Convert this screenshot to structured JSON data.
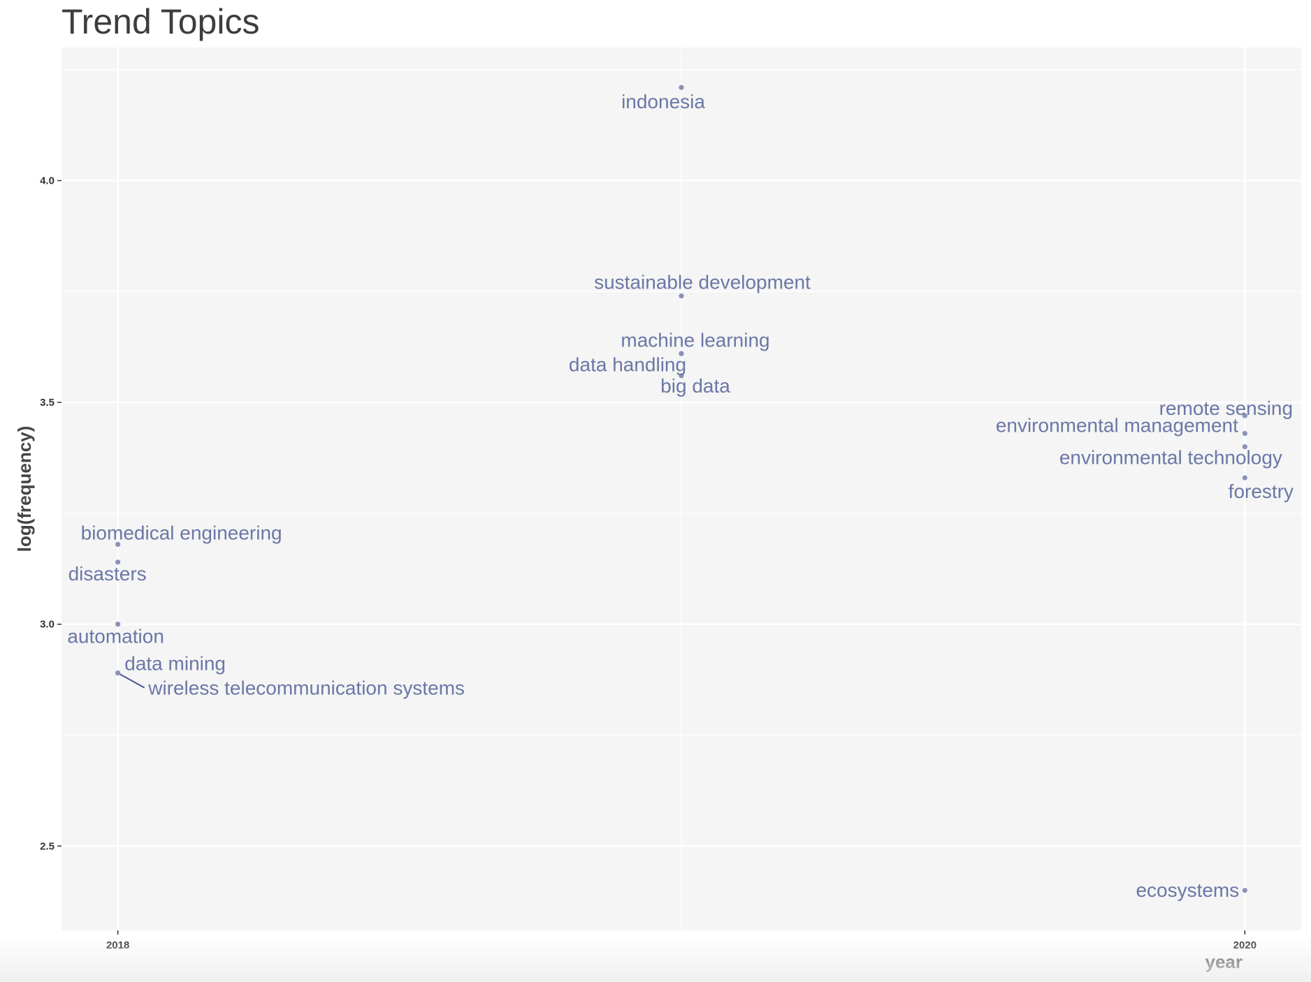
{
  "chart_data": {
    "type": "scatter",
    "title": "Trend Topics",
    "xlabel": "year",
    "ylabel": "log(frequency)",
    "xlim": [
      2017.9,
      2020.1
    ],
    "ylim": [
      2.31,
      4.3
    ],
    "x_ticks": [
      2018,
      2020
    ],
    "x_tick_labels": [
      "2018",
      "2020"
    ],
    "y_ticks": [
      2.5,
      3.0,
      3.5,
      4.0
    ],
    "y_tick_labels": [
      "2.5",
      "3.0",
      "3.5",
      "4.0"
    ],
    "grid": true,
    "legend": "none",
    "colors": {
      "panel_background": "#f5f5f5",
      "grid": "#ffffff",
      "point": "#8a92b8",
      "label": "#6b77a6"
    },
    "points": [
      {
        "label": "indonesia",
        "x": 2019,
        "y": 4.21
      },
      {
        "label": "sustainable development",
        "x": 2019,
        "y": 3.74
      },
      {
        "label": "machine learning",
        "x": 2019,
        "y": 3.61
      },
      {
        "label": "data handling",
        "x": 2019,
        "y": 3.61
      },
      {
        "label": "big data",
        "x": 2019,
        "y": 3.56
      },
      {
        "label": "remote sensing",
        "x": 2020,
        "y": 3.47
      },
      {
        "label": "environmental management",
        "x": 2020,
        "y": 3.43
      },
      {
        "label": "environmental technology",
        "x": 2020,
        "y": 3.4
      },
      {
        "label": "forestry",
        "x": 2020,
        "y": 3.33
      },
      {
        "label": "ecosystems",
        "x": 2020,
        "y": 2.4
      },
      {
        "label": "biomedical engineering",
        "x": 2018,
        "y": 3.18
      },
      {
        "label": "disasters",
        "x": 2018,
        "y": 3.14
      },
      {
        "label": "automation",
        "x": 2018,
        "y": 3.0
      },
      {
        "label": "data mining",
        "x": 2018,
        "y": 2.89
      },
      {
        "label": "wireless telecommunication systems",
        "x": 2018,
        "y": 2.89
      }
    ]
  }
}
